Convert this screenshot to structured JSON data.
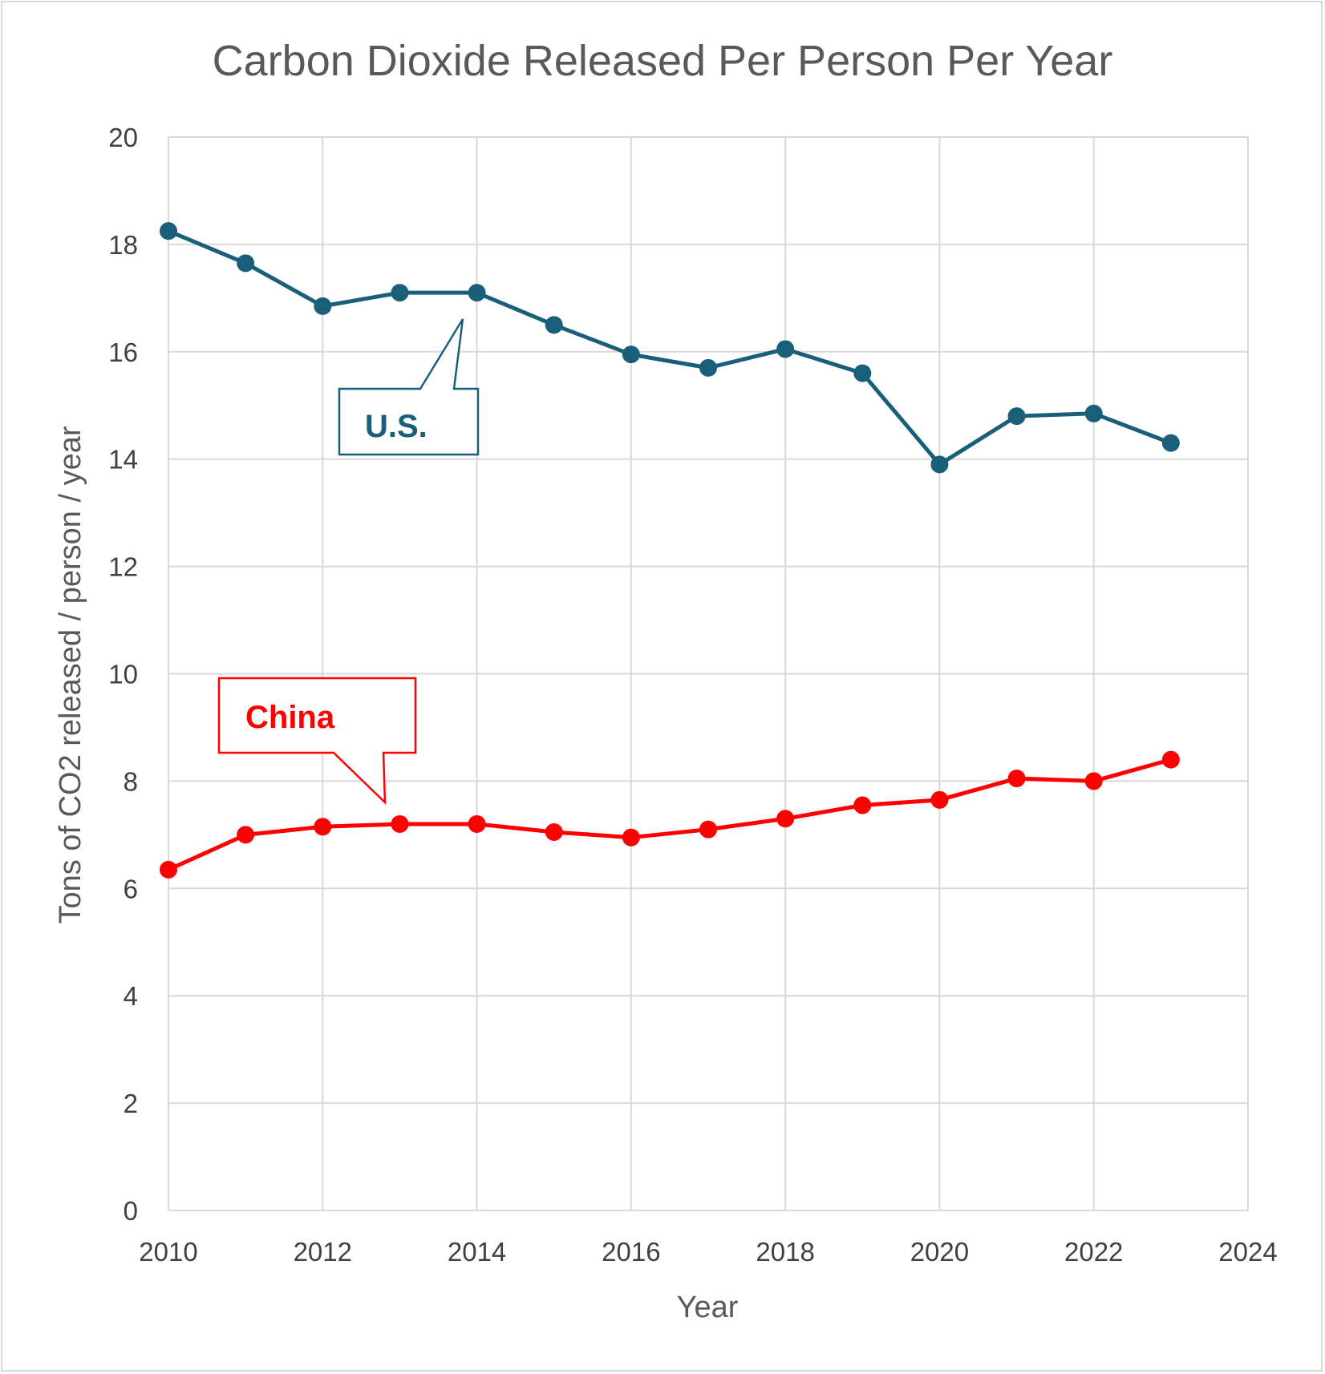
{
  "chart_data": {
    "type": "scatter",
    "title": "Carbon Dioxide Released Per Person Per Year",
    "xlabel": "Year",
    "ylabel": "Tons of CO2 released / person / year",
    "xlim": [
      2010,
      2024
    ],
    "ylim": [
      0,
      20
    ],
    "x_ticks": [
      2010,
      2012,
      2014,
      2016,
      2018,
      2020,
      2022,
      2024
    ],
    "y_ticks": [
      0,
      2,
      4,
      6,
      8,
      10,
      12,
      14,
      16,
      18,
      20
    ],
    "grid": true,
    "legend": "none",
    "series": [
      {
        "name": "U.S.",
        "color": "#1a5f7a",
        "x": [
          2010,
          2011,
          2012,
          2013,
          2014,
          2015,
          2016,
          2017,
          2018,
          2019,
          2020,
          2021,
          2022,
          2023
        ],
        "y": [
          18.25,
          17.65,
          16.85,
          17.1,
          17.1,
          16.5,
          15.95,
          15.7,
          16.05,
          15.6,
          13.9,
          14.8,
          14.85,
          14.3
        ]
      },
      {
        "name": "China",
        "color": "#ff0000",
        "x": [
          2010,
          2011,
          2012,
          2013,
          2014,
          2015,
          2016,
          2017,
          2018,
          2019,
          2020,
          2021,
          2022,
          2023
        ],
        "y": [
          6.35,
          7.0,
          7.15,
          7.2,
          7.2,
          7.05,
          6.95,
          7.1,
          7.3,
          7.55,
          7.65,
          8.05,
          8.0,
          8.4
        ]
      }
    ],
    "annotations": [
      {
        "text": "U.S.",
        "series": "U.S.",
        "color": "#1a5f7a"
      },
      {
        "text": "China",
        "series": "China",
        "color": "#ff0000"
      }
    ]
  }
}
